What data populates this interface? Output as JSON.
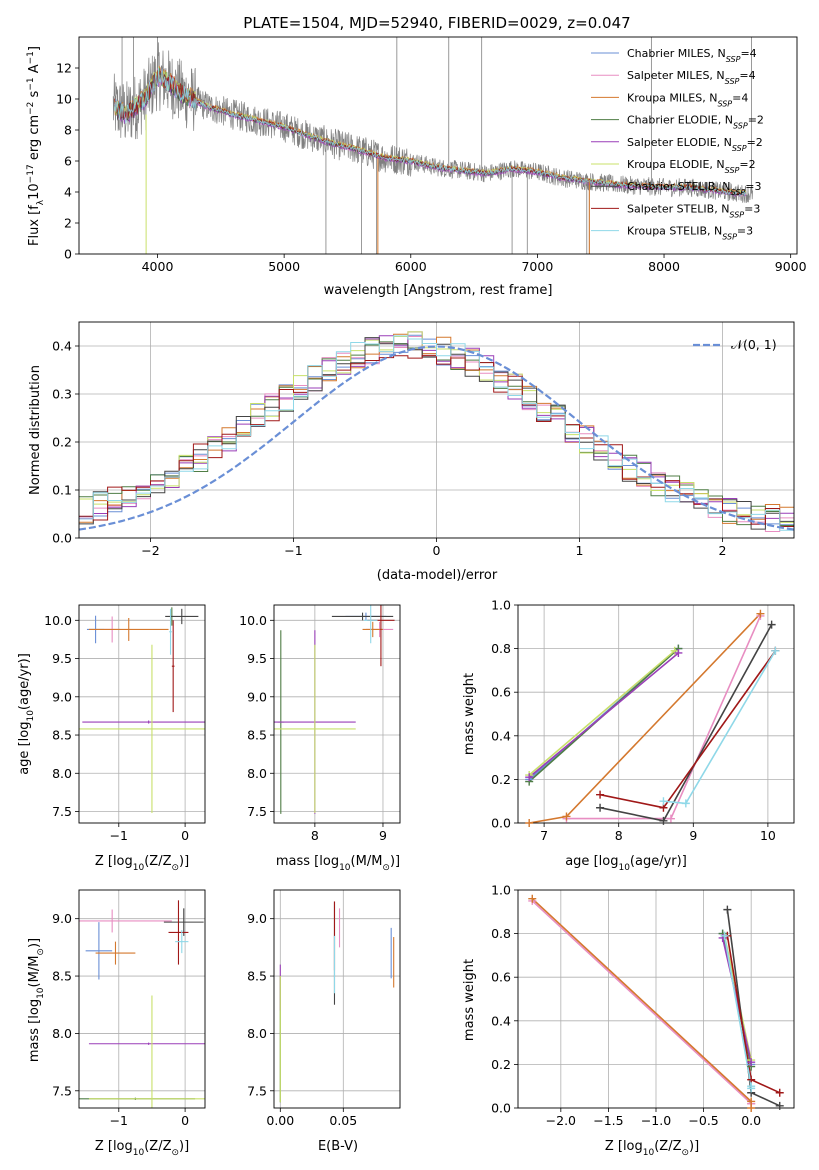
{
  "title": "PLATE=1504, MJD=52940, FIBERID=0029, z=0.047",
  "legend_models": [
    {
      "label": "Chabrier MILES, N",
      "sub": "SSP",
      "suffix": "=4",
      "color": "#6a8fd6"
    },
    {
      "label": "Salpeter MILES, N",
      "sub": "SSP",
      "suffix": "=4",
      "color": "#e88ec2"
    },
    {
      "label": "Kroupa MILES, N",
      "sub": "SSP",
      "suffix": "=4",
      "color": "#d4782e"
    },
    {
      "label": "Chabrier ELODIE, N",
      "sub": "SSP",
      "suffix": "=2",
      "color": "#4f7d45"
    },
    {
      "label": "Salpeter ELODIE, N",
      "sub": "SSP",
      "suffix": "=2",
      "color": "#9a3fb8"
    },
    {
      "label": "Kroupa ELODIE, N",
      "sub": "SSP",
      "suffix": "=2",
      "color": "#c8e06a"
    },
    {
      "label": "Chabrier STELIB, N",
      "sub": "SSP",
      "suffix": "=3",
      "color": "#444444"
    },
    {
      "label": "Salpeter STELIB, N",
      "sub": "SSP",
      "suffix": "=3",
      "color": "#a01818"
    },
    {
      "label": "Kroupa STELIB, N",
      "sub": "SSP",
      "suffix": "=3",
      "color": "#8fd8e8"
    }
  ],
  "chart_data": [
    {
      "id": "spectrum",
      "type": "line",
      "xlabel": "wavelength [Angstrom, rest frame]",
      "ylabel_main": "Flux [f",
      "ylabel_sub": "λ",
      "ylabel_mid": "10",
      "ylabel_sup1": "−17",
      "ylabel_rest": " erg cm",
      "ylabel_sup2": "−2",
      "ylabel_rest2": " s",
      "ylabel_sup3": "−1",
      "ylabel_rest3": " A",
      "ylabel_sup4": "−1",
      "ylabel_end": "]",
      "xlim": [
        3380,
        9050
      ],
      "ylim": [
        0,
        14
      ],
      "xticks": [
        4000,
        5000,
        6000,
        7000,
        8000,
        9000
      ],
      "yticks": [
        0,
        2,
        4,
        6,
        8,
        10,
        12
      ],
      "data_color": "#808080",
      "model_color": "#5fcfd8",
      "data_x_range": [
        3650,
        8700
      ],
      "continuum": [
        [
          3650,
          9.5
        ],
        [
          3750,
          9.0
        ],
        [
          3900,
          10.0
        ],
        [
          4000,
          11.5
        ],
        [
          4100,
          11.0
        ],
        [
          4200,
          10.3
        ],
        [
          4400,
          9.5
        ],
        [
          4600,
          9.0
        ],
        [
          4800,
          8.6
        ],
        [
          5000,
          8.2
        ],
        [
          5200,
          7.6
        ],
        [
          5400,
          7.1
        ],
        [
          5600,
          6.7
        ],
        [
          5800,
          6.2
        ],
        [
          6000,
          6.0
        ],
        [
          6200,
          5.6
        ],
        [
          6400,
          5.4
        ],
        [
          6600,
          5.2
        ],
        [
          6800,
          5.5
        ],
        [
          7000,
          5.3
        ],
        [
          7200,
          4.9
        ],
        [
          7400,
          4.7
        ],
        [
          7600,
          4.5
        ],
        [
          7800,
          4.4
        ],
        [
          8000,
          4.3
        ],
        [
          8200,
          4.3
        ],
        [
          8400,
          4.1
        ],
        [
          8600,
          3.9
        ],
        [
          8700,
          3.9
        ]
      ],
      "spikes": [
        [
          5330,
          0
        ],
        [
          5610,
          0
        ],
        [
          5730,
          0
        ],
        [
          6800,
          0
        ],
        [
          6920,
          0
        ],
        [
          7390,
          0
        ],
        [
          7410,
          0
        ],
        [
          4000,
          14
        ],
        [
          3720,
          14
        ],
        [
          3810,
          14
        ],
        [
          5890,
          14
        ],
        [
          6300,
          14
        ],
        [
          6560,
          14
        ],
        [
          8690,
          14
        ],
        [
          7900,
          14
        ]
      ]
    },
    {
      "id": "residuals",
      "type": "step",
      "xlabel": "(data-model)/error",
      "ylabel": "Normed distribution",
      "xlim": [
        -2.5,
        2.5
      ],
      "ylim": [
        0,
        0.45
      ],
      "xticks": [
        -2,
        -1,
        0,
        1,
        2
      ],
      "yticks": [
        0.0,
        0.1,
        0.2,
        0.3,
        0.4
      ],
      "bin_width": 0.1,
      "normal_label": "𝒩(0, 1)",
      "normal_color": "#6a8fd6"
    },
    {
      "id": "age_vs_Z",
      "type": "errorbar",
      "xlabel": "Z [log10(Z/Z⊙)]",
      "ylabel": "age  [log10(age/yr)]",
      "xlim": [
        -1.6,
        0.3
      ],
      "ylim": [
        7.35,
        10.2
      ],
      "xticks": [
        -1,
        0
      ],
      "yticks": [
        7.5,
        8.0,
        8.5,
        9.0,
        9.5,
        10.0
      ],
      "points": [
        {
          "c": 0,
          "x": -1.35,
          "y": 9.88,
          "xerr": 0.13,
          "yerr": 0.18
        },
        {
          "c": 1,
          "x": -1.1,
          "y": 9.88,
          "xerr": 0.12,
          "yerr": 0.17
        },
        {
          "c": 2,
          "x": -0.85,
          "y": 9.88,
          "xerr": 0.6,
          "yerr": 0.15
        },
        {
          "c": 3,
          "x": -0.2,
          "y": 10.05,
          "xerr": 0.02,
          "yerr": 0.12
        },
        {
          "c": 4,
          "x": -0.55,
          "y": 8.67,
          "xerr": 1.0,
          "yerr": 0.02
        },
        {
          "c": 5,
          "x": -0.5,
          "y": 8.58,
          "xerr": 1.1,
          "yerr": 1.1
        },
        {
          "c": 6,
          "x": -0.05,
          "y": 10.05,
          "xerr": 0.25,
          "yerr": 0.1
        },
        {
          "c": 7,
          "x": -0.18,
          "y": 9.4,
          "xerr": 0.02,
          "yerr": 0.6
        },
        {
          "c": 8,
          "x": -0.22,
          "y": 9.85,
          "xerr": 0.02,
          "yerr": 0.3
        }
      ]
    },
    {
      "id": "age_vs_mass",
      "type": "errorbar",
      "xlabel": "mass [log10(M/M⊙)]",
      "ylabel": "",
      "xlim": [
        7.4,
        9.25
      ],
      "ylim": [
        7.35,
        10.2
      ],
      "xticks": [
        8,
        9
      ],
      "yticks": [
        7.5,
        8.0,
        8.5,
        9.0,
        9.5,
        10.0
      ],
      "points": [
        {
          "c": 0,
          "x": 8.75,
          "y": 10.05,
          "xerr": 0.3,
          "yerr": 0.05
        },
        {
          "c": 1,
          "x": 8.95,
          "y": 9.88,
          "xerr": 0.2,
          "yerr": 0.1
        },
        {
          "c": 2,
          "x": 8.85,
          "y": 9.88,
          "xerr": 0.15,
          "yerr": 0.1
        },
        {
          "c": 3,
          "x": 7.5,
          "y": 8.67,
          "xerr": 0.05,
          "yerr": 1.2
        },
        {
          "c": 4,
          "x": 8.0,
          "y": 8.67,
          "xerr": 0.6,
          "yerr": 1.2
        },
        {
          "c": 5,
          "x": 8.0,
          "y": 8.58,
          "xerr": 0.6,
          "yerr": 1.1
        },
        {
          "c": 6,
          "x": 8.7,
          "y": 10.05,
          "xerr": 0.45,
          "yerr": 0.05
        },
        {
          "c": 7,
          "x": 8.97,
          "y": 10.0,
          "xerr": 0.2,
          "yerr": 0.6
        },
        {
          "c": 8,
          "x": 8.82,
          "y": 10.0,
          "xerr": 0.1,
          "yerr": 0.3
        }
      ]
    },
    {
      "id": "weight_vs_age",
      "type": "line",
      "xlabel": "age  [log10(age/yr)]",
      "ylabel": "mass weight",
      "xlim": [
        6.65,
        10.35
      ],
      "ylim": [
        0,
        1.0
      ],
      "xticks": [
        7,
        8,
        9,
        10
      ],
      "yticks": [
        0.0,
        0.2,
        0.4,
        0.6,
        0.8,
        1.0
      ],
      "series": [
        {
          "c": 0,
          "x": [
            6.8,
            8.8
          ],
          "y": [
            0.2,
            0.8
          ]
        },
        {
          "c": 3,
          "x": [
            6.8,
            8.8
          ],
          "y": [
            0.19,
            0.8
          ]
        },
        {
          "c": 5,
          "x": [
            6.8,
            8.75
          ],
          "y": [
            0.22,
            0.79
          ]
        },
        {
          "c": 4,
          "x": [
            6.8,
            8.8
          ],
          "y": [
            0.21,
            0.78
          ]
        },
        {
          "c": 1,
          "x": [
            7.3,
            8.7,
            9.9
          ],
          "y": [
            0.02,
            0.02,
            0.95
          ]
        },
        {
          "c": 2,
          "x": [
            6.8,
            7.3,
            9.9
          ],
          "y": [
            0.0,
            0.03,
            0.96
          ]
        },
        {
          "c": 6,
          "x": [
            7.75,
            8.6,
            10.05
          ],
          "y": [
            0.07,
            0.01,
            0.91
          ]
        },
        {
          "c": 7,
          "x": [
            7.75,
            8.6,
            10.1
          ],
          "y": [
            0.13,
            0.07,
            0.79
          ]
        },
        {
          "c": 8,
          "x": [
            8.6,
            8.9,
            10.1
          ],
          "y": [
            0.1,
            0.09,
            0.79
          ]
        }
      ]
    },
    {
      "id": "mass_vs_Z",
      "type": "errorbar",
      "xlabel": "Z [log10(Z/Z⊙)]",
      "ylabel": "mass [log10(M/M⊙)]",
      "xlim": [
        -1.6,
        0.3
      ],
      "ylim": [
        7.35,
        9.25
      ],
      "xticks": [
        -1,
        0
      ],
      "yticks": [
        7.5,
        8.0,
        8.5,
        9.0
      ],
      "points": [
        {
          "c": 0,
          "x": -1.3,
          "y": 8.72,
          "xerr": 0.2,
          "yerr": 0.25
        },
        {
          "c": 1,
          "x": -1.1,
          "y": 8.98,
          "xerr": 0.9,
          "yerr": 0.1
        },
        {
          "c": 2,
          "x": -1.05,
          "y": 8.7,
          "xerr": 0.3,
          "yerr": 0.1
        },
        {
          "c": 3,
          "x": -0.75,
          "y": 7.43,
          "xerr": 0.9,
          "yerr": 0.01
        },
        {
          "c": 4,
          "x": -0.55,
          "y": 7.91,
          "xerr": 0.9,
          "yerr": 0.01
        },
        {
          "c": 5,
          "x": -0.5,
          "y": 7.43,
          "xerr": 0.95,
          "yerr": 0.9
        },
        {
          "c": 6,
          "x": -0.02,
          "y": 8.97,
          "xerr": 0.3,
          "yerr": 0.12
        },
        {
          "c": 7,
          "x": -0.1,
          "y": 8.88,
          "xerr": 0.15,
          "yerr": 0.28
        },
        {
          "c": 8,
          "x": -0.05,
          "y": 8.8,
          "xerr": 0.1,
          "yerr": 0.1
        }
      ]
    },
    {
      "id": "mass_vs_ebv",
      "type": "errorbar",
      "xlabel": "E(B-V)",
      "ylabel": "",
      "xlim": [
        -0.005,
        0.095
      ],
      "ylim": [
        7.35,
        9.25
      ],
      "xticks": [
        0.0,
        0.05
      ],
      "xticklabels": [
        "0.00",
        "0.05"
      ],
      "yticks": [
        7.5,
        8.0,
        8.5,
        9.0
      ],
      "points": [
        {
          "c": 0,
          "x": 0.088,
          "y": 8.7,
          "xerr": 0.0,
          "yerr": 0.22
        },
        {
          "c": 1,
          "x": 0.047,
          "y": 8.92,
          "xerr": 0.0,
          "yerr": 0.17
        },
        {
          "c": 2,
          "x": 0.09,
          "y": 8.62,
          "xerr": 0.0,
          "yerr": 0.22
        },
        {
          "c": 3,
          "x": 0.0,
          "y": 7.95,
          "xerr": 0.0,
          "yerr": 0.55
        },
        {
          "c": 4,
          "x": 0.0,
          "y": 8.4,
          "xerr": 0.0,
          "yerr": 0.2
        },
        {
          "c": 5,
          "x": 0.0,
          "y": 7.95,
          "xerr": 0.0,
          "yerr": 0.55
        },
        {
          "c": 6,
          "x": 0.043,
          "y": 8.7,
          "xerr": 0.0,
          "yerr": 0.45
        },
        {
          "c": 7,
          "x": 0.043,
          "y": 8.85,
          "xerr": 0.0,
          "yerr": 0.3
        },
        {
          "c": 8,
          "x": 0.043,
          "y": 8.6,
          "xerr": 0.0,
          "yerr": 0.25
        }
      ]
    },
    {
      "id": "weight_vs_Z",
      "type": "line",
      "xlabel": "Z [log10(Z/Z⊙)]",
      "ylabel": "mass weight",
      "xlim": [
        -2.45,
        0.45
      ],
      "ylim": [
        0,
        1.0
      ],
      "xticks": [
        -2.0,
        -1.5,
        -1.0,
        -0.5,
        0.0
      ],
      "xticklabels": [
        "−2.0",
        "−1.5",
        "−1.0",
        "−0.5",
        "0.0"
      ],
      "yticks": [
        0.0,
        0.2,
        0.4,
        0.6,
        0.8,
        1.0
      ],
      "series": [
        {
          "c": 0,
          "x": [
            -0.3,
            0.0
          ],
          "y": [
            0.8,
            0.2
          ]
        },
        {
          "c": 3,
          "x": [
            -0.3,
            0.0
          ],
          "y": [
            0.8,
            0.19
          ]
        },
        {
          "c": 5,
          "x": [
            -0.28,
            0.0
          ],
          "y": [
            0.79,
            0.22
          ]
        },
        {
          "c": 4,
          "x": [
            -0.3,
            0.0
          ],
          "y": [
            0.78,
            0.21
          ]
        },
        {
          "c": 1,
          "x": [
            -2.3,
            0.0,
            0.0
          ],
          "y": [
            0.95,
            0.02,
            0.02
          ]
        },
        {
          "c": 2,
          "x": [
            -2.3,
            0.0,
            0.0
          ],
          "y": [
            0.96,
            0.03,
            0.0
          ]
        },
        {
          "c": 6,
          "x": [
            -0.25,
            0.0,
            0.3
          ],
          "y": [
            0.91,
            0.07,
            0.01
          ]
        },
        {
          "c": 7,
          "x": [
            -0.25,
            0.0,
            0.3
          ],
          "y": [
            0.79,
            0.13,
            0.07
          ]
        },
        {
          "c": 8,
          "x": [
            -0.28,
            0.0,
            0.0
          ],
          "y": [
            0.79,
            0.1,
            0.09
          ]
        }
      ]
    }
  ]
}
